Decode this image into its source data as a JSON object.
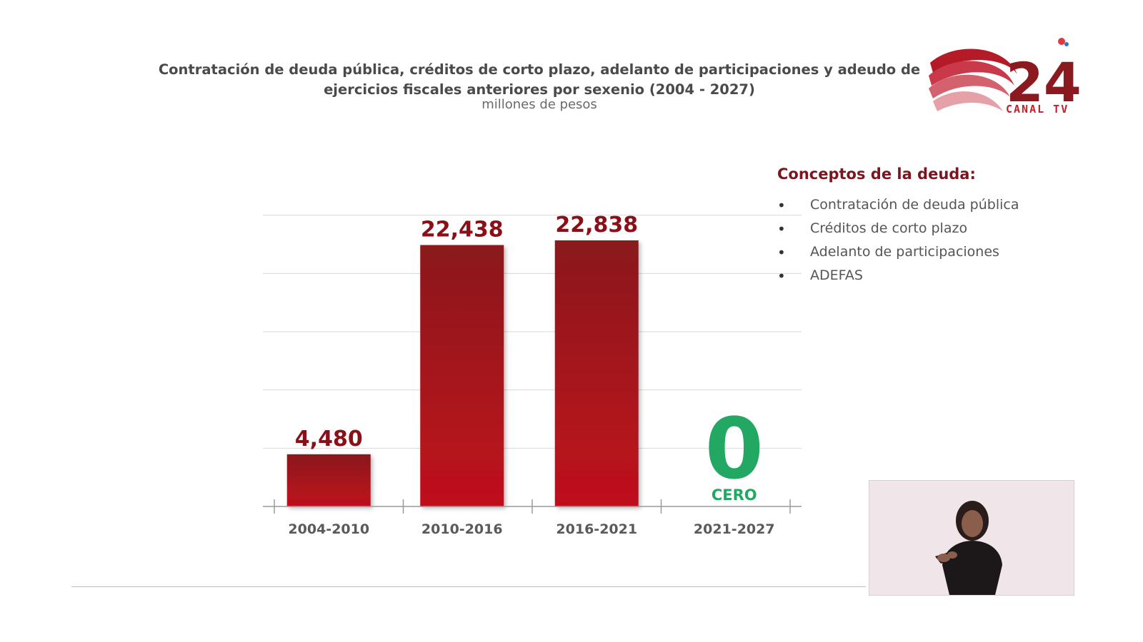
{
  "title": "Contratación de deuda pública, créditos de corto plazo, adelanto de participaciones y adeudo de ejercicios fiscales anteriores por sexenio (2004 - 2027)",
  "subtitle": "millones de pesos",
  "chart_data": {
    "type": "bar",
    "categories": [
      "2004-2010",
      "2010-2016",
      "2016-2021",
      "2021-2027"
    ],
    "values": [
      4480,
      22438,
      22838,
      0
    ],
    "data_labels": [
      "4,480",
      "22,438",
      "22,838",
      "0"
    ],
    "zero_annotation": "CERO",
    "ylim": [
      0,
      30000
    ],
    "grid": true,
    "colors": {
      "bar": "#a8121f",
      "bar_top": "#8a1a1c",
      "label": "#8b0f17",
      "zero": "#22a862",
      "axis_text": "#5a5a5a"
    }
  },
  "legend": {
    "title": "Conceptos de la deuda:",
    "bullet": "•",
    "items": [
      "Contratación de deuda pública",
      "Créditos de corto plazo",
      "Adelanto de participaciones",
      "ADEFAS"
    ]
  },
  "logo": {
    "text": "CANAL TV",
    "number": "24"
  }
}
